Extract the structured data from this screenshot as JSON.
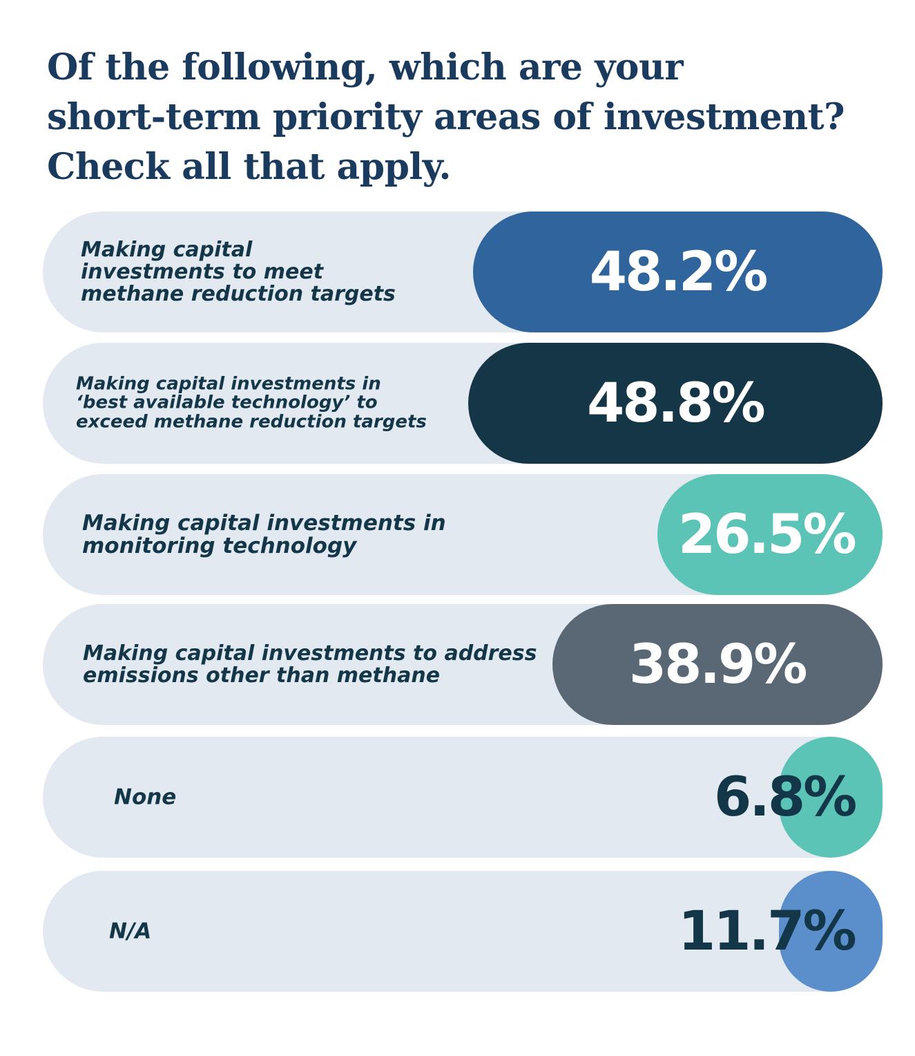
{
  "title": [
    "Of the following, which are your",
    "short-term priority areas of investment?",
    "Check all that apply."
  ],
  "chart_data": {
    "type": "bar",
    "orientation": "horizontal",
    "title": "Of the following, which are your short-term priority areas of investment? Check all that apply.",
    "unit": "%",
    "categories": [
      "Making capital investments to meet methane reduction targets",
      "Making capital investments in ‘best available technology’ to exceed methane reduction targets",
      "Making capital investments in monitoring technology",
      "Making capital investments to address emissions other than methane",
      "None",
      "N/A"
    ],
    "values": [
      48.2,
      48.8,
      26.5,
      38.9,
      6.8,
      11.7
    ],
    "bars": [
      {
        "label_lines": [
          "Making capital",
          "investments to meet",
          "methane reduction targets"
        ],
        "value": 48.2,
        "value_label": "48.2%",
        "color": "#2f659c",
        "value_color": "#ffffff"
      },
      {
        "label_lines": [
          "Making capital investments in",
          "‘best available technology’ to",
          "exceed methane reduction targets"
        ],
        "value": 48.8,
        "value_label": "48.8%",
        "color": "#143647",
        "value_color": "#ffffff"
      },
      {
        "label_lines": [
          "Making capital investments in",
          "monitoring technology"
        ],
        "value": 26.5,
        "value_label": "26.5%",
        "color": "#5bc4b6",
        "value_color": "#ffffff"
      },
      {
        "label_lines": [
          "Making capital investments to address",
          "emissions other than methane"
        ],
        "value": 38.9,
        "value_label": "38.9%",
        "color": "#5a6876",
        "value_color": "#ffffff"
      },
      {
        "label_lines": [
          "None"
        ],
        "value": 6.8,
        "value_label": "6.8%",
        "color": "#5bc4b6",
        "value_color": "#133749"
      },
      {
        "label_lines": [
          "N/A"
        ],
        "value": 11.7,
        "value_label": "11.7%",
        "color": "#5b8fcb",
        "value_color": "#133749"
      }
    ],
    "track_color": "#e3e9f0",
    "label_color": "#133749",
    "title_color": "#1a3a5e"
  }
}
